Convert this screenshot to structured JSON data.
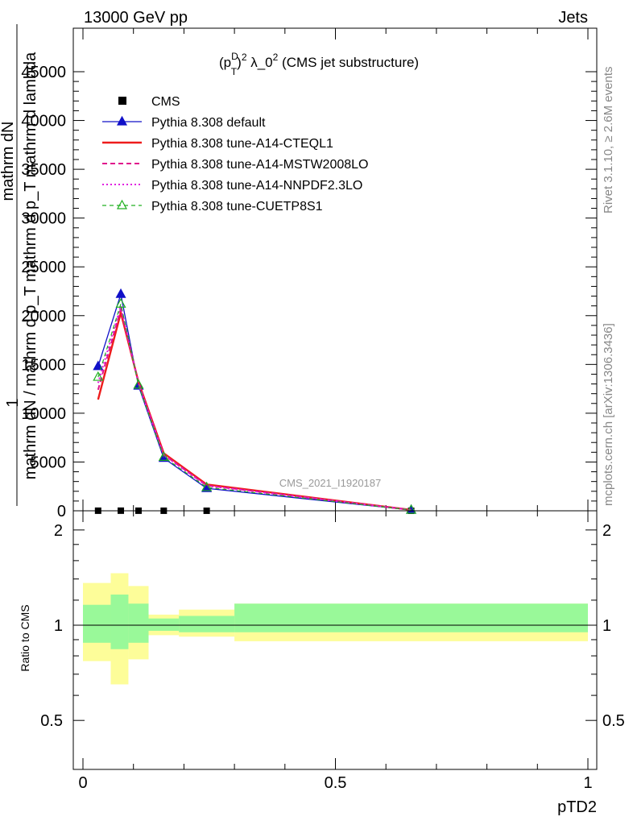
{
  "header": {
    "left": "13000 GeV pp",
    "right": "Jets"
  },
  "side_labels": {
    "rivet": "Rivet 3.1.10, ≥ 2.6M events",
    "mcplots": "mcplots.cern.ch [arXiv:1306.3436]"
  },
  "watermark": "CMS_2021_I1920187",
  "chart_data": [
    {
      "type": "line",
      "panel": "main",
      "title": "(p_T^D)^2 λ_0^2 (CMS jet substructure)",
      "title_parts": {
        "p": "(p",
        "sup_d": "D",
        "sub_t": "T",
        "close": ")",
        "sup_2": "2",
        "lambda": " λ_0",
        "sup_2b": "2",
        "rest": " (CMS jet substructure)"
      },
      "ylabel_lines": [
        "1",
        "mathrm dN / mathrm d p_T mathrm d p_T mathrm d lambda",
        "mathrm dN"
      ],
      "ylim": [
        0,
        45000
      ],
      "yticks": [
        0,
        5000,
        10000,
        15000,
        20000,
        25000,
        30000,
        35000,
        40000,
        45000
      ],
      "ytick_labels": [
        "0",
        "5000",
        "10000",
        "15000",
        "20000",
        "25000",
        "30000",
        "35000",
        "40000",
        "45000"
      ],
      "xlim": [
        0,
        1
      ],
      "x": [
        0.03,
        0.075,
        0.11,
        0.16,
        0.245,
        0.65
      ],
      "series": [
        {
          "name": "CMS",
          "style": "data",
          "color": "#000000",
          "values": [
            10,
            12,
            9,
            6,
            5,
            0.3
          ]
        },
        {
          "name": "Pythia 8.308 default",
          "style": "solid",
          "marker": "triangle-filled",
          "color": "#1010c8",
          "values": [
            14800,
            22200,
            12800,
            5400,
            2300,
            80
          ]
        },
        {
          "name": "Pythia 8.308 tune-A14-CTEQL1",
          "style": "solid-thick",
          "marker": "none",
          "color": "#ee1c1c",
          "values": [
            11400,
            20300,
            13200,
            5900,
            2700,
            90
          ]
        },
        {
          "name": "Pythia 8.308 tune-A14-MSTW2008LO",
          "style": "dashed",
          "marker": "none",
          "color": "#e0148c",
          "values": [
            12400,
            20700,
            13100,
            5750,
            2600,
            85
          ]
        },
        {
          "name": "Pythia 8.308 tune-A14-NNPDF2.3LO",
          "style": "dotted",
          "marker": "none",
          "color": "#e020e0",
          "values": [
            13100,
            21000,
            13000,
            5700,
            2550,
            85
          ]
        },
        {
          "name": "Pythia 8.308 tune-CUETP8S1",
          "style": "dashed-thin",
          "marker": "triangle-open",
          "color": "#20b020",
          "values": [
            13700,
            21200,
            12900,
            5500,
            2400,
            82
          ]
        }
      ]
    },
    {
      "type": "area",
      "panel": "ratio",
      "ylabel": "Ratio to CMS",
      "ylim": [
        0.35,
        2.3
      ],
      "yticks": [
        0.5,
        1,
        2
      ],
      "ytick_labels": [
        "0.5",
        "1",
        "2"
      ],
      "xlim": [
        0,
        1
      ],
      "xticks": [
        0,
        0.5,
        1
      ],
      "xtick_labels": [
        "0",
        "0.5",
        "1"
      ],
      "xlabel": "pTD2",
      "reference": 1,
      "bins": [
        {
          "lo": 0.0,
          "hi": 0.055,
          "inner": [
            0.88,
            1.16
          ],
          "outer": [
            0.77,
            1.36
          ]
        },
        {
          "lo": 0.055,
          "hi": 0.09,
          "inner": [
            0.84,
            1.25
          ],
          "outer": [
            0.65,
            1.46
          ]
        },
        {
          "lo": 0.09,
          "hi": 0.13,
          "inner": [
            0.88,
            1.17
          ],
          "outer": [
            0.78,
            1.33
          ]
        },
        {
          "lo": 0.13,
          "hi": 0.19,
          "inner": [
            0.96,
            1.05
          ],
          "outer": [
            0.93,
            1.08
          ]
        },
        {
          "lo": 0.19,
          "hi": 0.3,
          "inner": [
            0.95,
            1.07
          ],
          "outer": [
            0.92,
            1.12
          ]
        },
        {
          "lo": 0.3,
          "hi": 1.0,
          "inner": [
            0.95,
            1.17
          ],
          "outer": [
            0.89,
            1.17
          ]
        }
      ]
    }
  ],
  "colors": {
    "inner_band": "#99f999",
    "outer_band": "#fdfd99"
  }
}
